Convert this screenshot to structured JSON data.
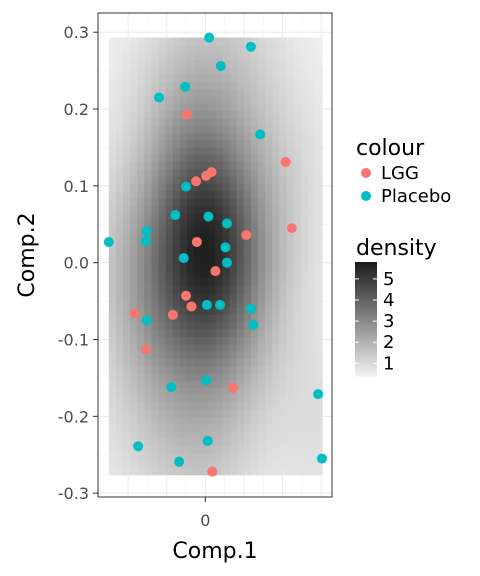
{
  "chart_data": {
    "type": "scatter",
    "background": "2d density heatmap (grayscale)",
    "xlabel": "Comp.1",
    "ylabel": "Comp.2",
    "xlim": [
      -0.139,
      0.164
    ],
    "ylim": [
      -0.305,
      0.325
    ],
    "x_ticks": [
      0
    ],
    "x_tick_labels": [
      "0"
    ],
    "y_ticks": [
      -0.3,
      -0.2,
      -0.1,
      0.0,
      0.1,
      0.2,
      0.3
    ],
    "y_tick_labels": [
      "-0.3",
      "-0.2",
      "-0.1",
      "0.0",
      "0.1",
      "0.2",
      "0.3"
    ],
    "grid": true,
    "legend_placement": "right",
    "colour_legend": {
      "title": "colour",
      "entries": [
        {
          "label": "LGG",
          "color": "#F8766D"
        },
        {
          "label": "Placebo",
          "color": "#00BFC4"
        }
      ]
    },
    "density_legend": {
      "title": "density",
      "range": [
        0.4,
        5.8
      ],
      "tick_values": [
        1,
        2,
        3,
        4,
        5
      ],
      "tick_labels": [
        "1",
        "2",
        "3",
        "4",
        "5"
      ],
      "low_color": "#f2f2f2",
      "high_color": "#1a1a1a"
    },
    "series": [
      {
        "name": "LGG",
        "color": "#F8766D",
        "points": [
          {
            "x": -0.024,
            "y": 0.193
          },
          {
            "x": 0.104,
            "y": 0.131
          },
          {
            "x": 0.008,
            "y": 0.118
          },
          {
            "x": 0.001,
            "y": 0.113
          },
          {
            "x": -0.012,
            "y": 0.106
          },
          {
            "x": 0.112,
            "y": 0.045
          },
          {
            "x": 0.053,
            "y": 0.036
          },
          {
            "x": -0.011,
            "y": 0.027
          },
          {
            "x": 0.013,
            "y": -0.011
          },
          {
            "x": -0.025,
            "y": -0.043
          },
          {
            "x": -0.018,
            "y": -0.057
          },
          {
            "x": -0.042,
            "y": -0.068
          },
          {
            "x": -0.092,
            "y": -0.066
          },
          {
            "x": -0.077,
            "y": -0.113
          },
          {
            "x": 0.036,
            "y": -0.163
          },
          {
            "x": 0.009,
            "y": -0.272
          }
        ]
      },
      {
        "name": "Placebo",
        "color": "#00BFC4",
        "points": [
          {
            "x": 0.005,
            "y": 0.293
          },
          {
            "x": 0.059,
            "y": 0.281
          },
          {
            "x": 0.02,
            "y": 0.256
          },
          {
            "x": -0.026,
            "y": 0.229
          },
          {
            "x": -0.06,
            "y": 0.215
          },
          {
            "x": 0.071,
            "y": 0.167
          },
          {
            "x": -0.025,
            "y": 0.099
          },
          {
            "x": -0.039,
            "y": 0.062
          },
          {
            "x": 0.004,
            "y": 0.06
          },
          {
            "x": 0.028,
            "y": 0.051
          },
          {
            "x": -0.076,
            "y": 0.041
          },
          {
            "x": -0.077,
            "y": 0.028
          },
          {
            "x": -0.125,
            "y": 0.027
          },
          {
            "x": 0.026,
            "y": 0.02
          },
          {
            "x": -0.028,
            "y": 0.006
          },
          {
            "x": 0.028,
            "y": 0.0
          },
          {
            "x": 0.002,
            "y": -0.055
          },
          {
            "x": 0.019,
            "y": -0.055
          },
          {
            "x": 0.059,
            "y": -0.06
          },
          {
            "x": 0.062,
            "y": -0.081
          },
          {
            "x": -0.076,
            "y": -0.075
          },
          {
            "x": -0.044,
            "y": -0.162
          },
          {
            "x": 0.001,
            "y": -0.153
          },
          {
            "x": 0.146,
            "y": -0.171
          },
          {
            "x": 0.003,
            "y": -0.232
          },
          {
            "x": -0.087,
            "y": -0.239
          },
          {
            "x": -0.034,
            "y": -0.259
          },
          {
            "x": 0.151,
            "y": -0.255
          }
        ]
      }
    ],
    "density_peak": {
      "x": 0.0,
      "y": 0.02
    },
    "density_extent": {
      "xlim": [
        -0.125,
        0.151
      ],
      "ylim": [
        -0.276,
        0.293
      ]
    }
  }
}
